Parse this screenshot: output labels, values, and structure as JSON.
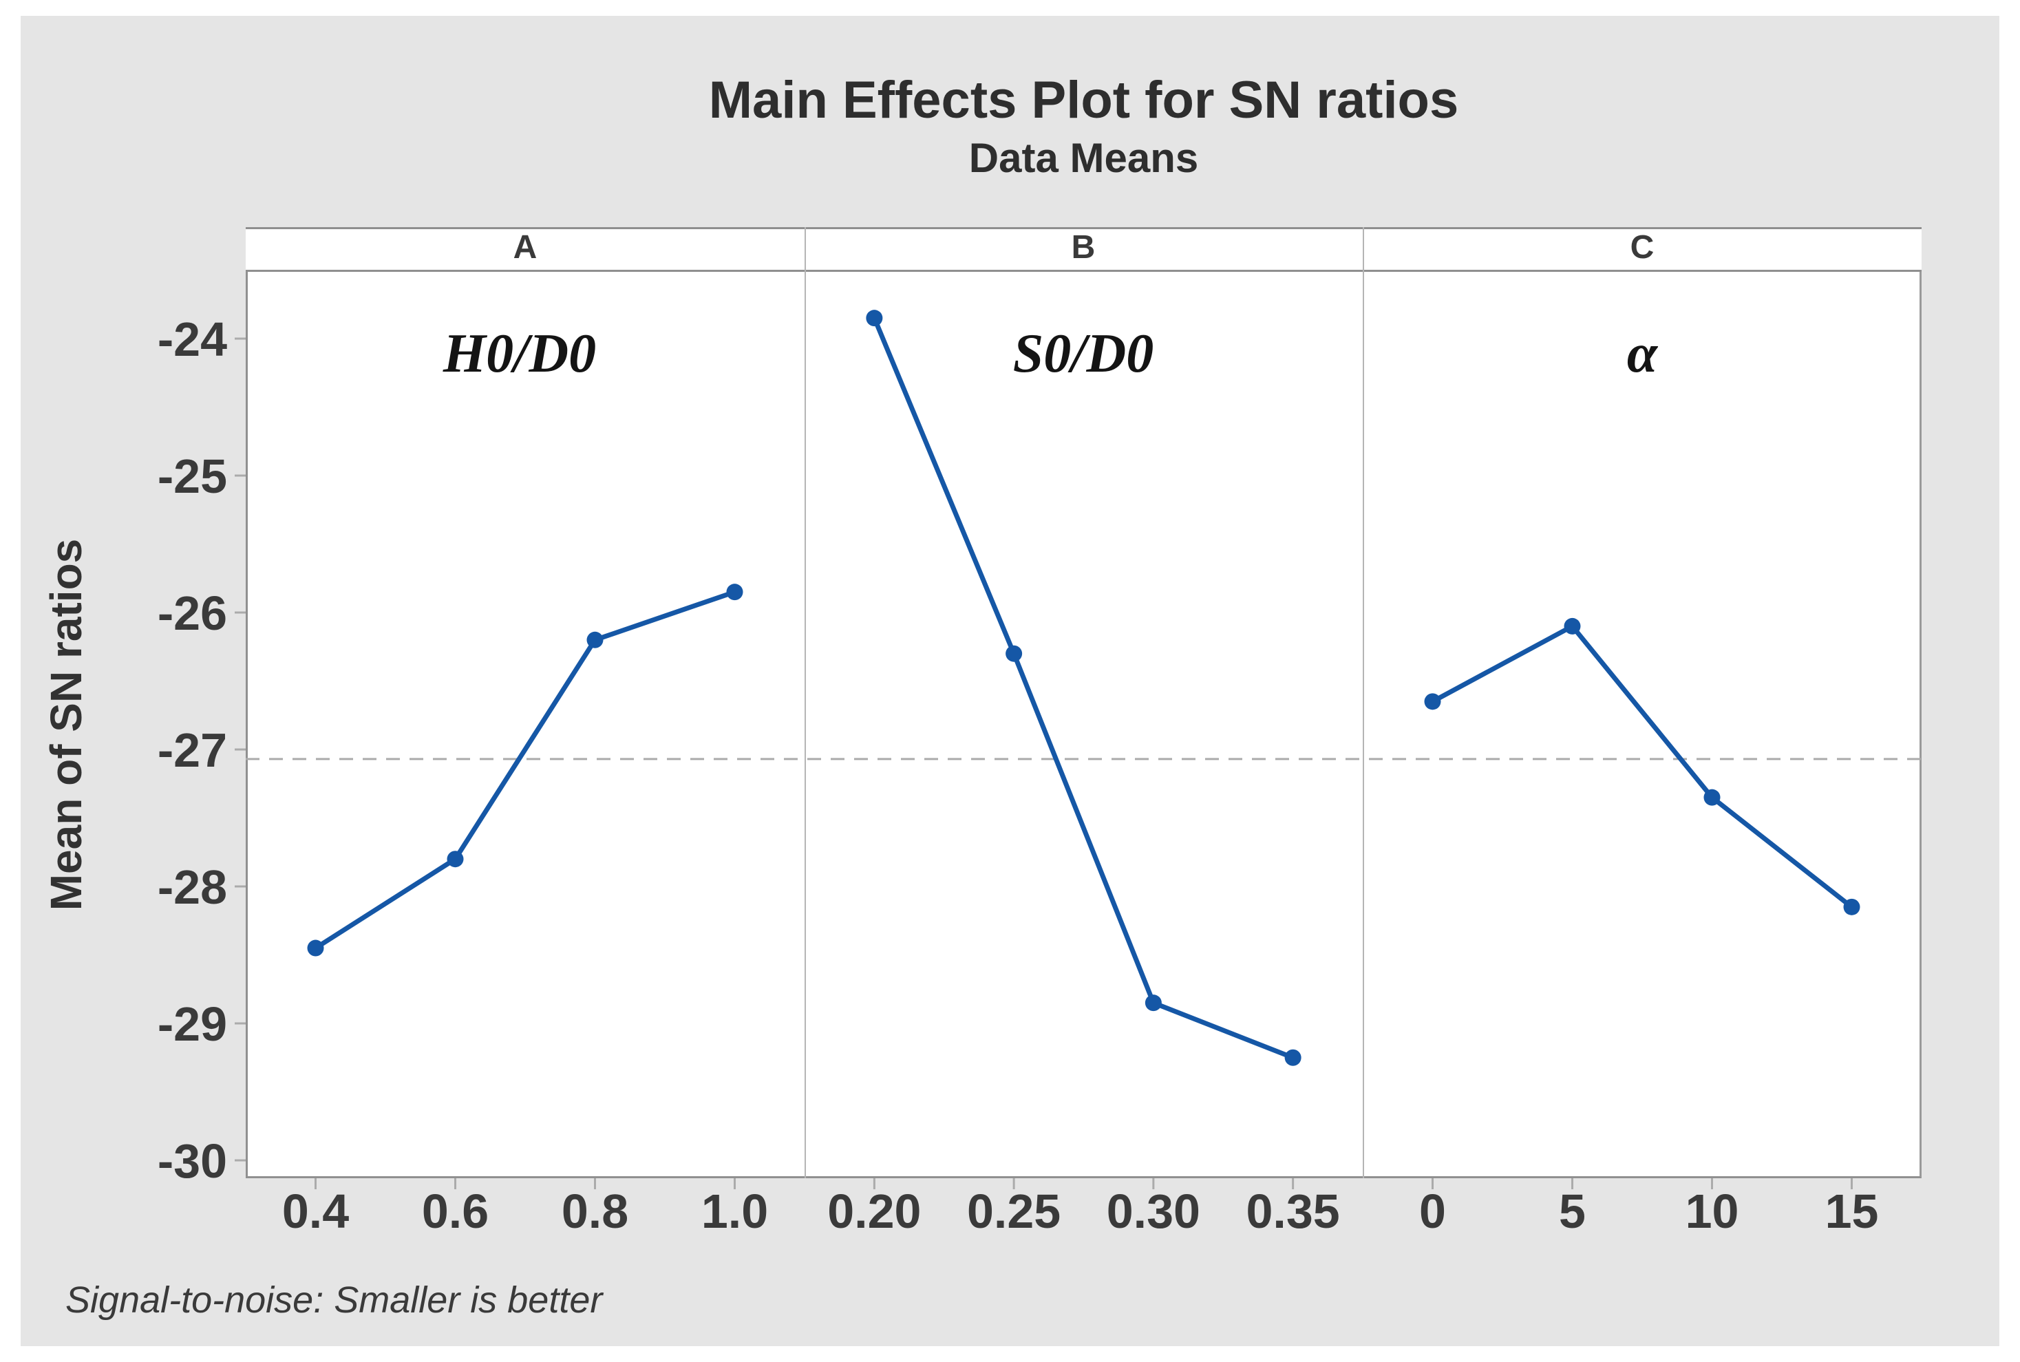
{
  "title": "Main Effects Plot for SN ratios",
  "subtitle": "Data Means",
  "y_axis_title": "Mean of SN ratios",
  "footer": "Signal-to-noise: Smaller is better",
  "colors": {
    "series_line": "#1557A6",
    "marker": "#1557A6",
    "mean_line": "#ABABAB",
    "axis": "#909090",
    "tick_mark": "#ABABAB",
    "tick_text": "#3A3A3A",
    "canvas_bg": "#E5E5E5",
    "plot_bg": "#FFFFFF"
  },
  "chart_data": {
    "type": "line",
    "title": "Main Effects Plot for SN ratios",
    "subtitle": "Data Means",
    "ylabel": "Mean of SN ratios",
    "ylim": [
      -30.13,
      -23.51
    ],
    "yticks": [
      -24,
      -25,
      -26,
      -27,
      -28,
      -29,
      -30
    ],
    "grid": "off",
    "legend": "none",
    "mean_line": -27.07,
    "footnote": "Signal-to-noise: Smaller is better",
    "panels": [
      {
        "header": "A",
        "factor_label": "H0/D0",
        "categories": [
          "0.4",
          "0.6",
          "0.8",
          "1.0"
        ],
        "values": [
          -28.45,
          -27.8,
          -26.2,
          -25.85
        ]
      },
      {
        "header": "B",
        "factor_label": "S0/D0",
        "categories": [
          "0.20",
          "0.25",
          "0.30",
          "0.35"
        ],
        "values": [
          -23.85,
          -26.3,
          -28.85,
          -29.25
        ]
      },
      {
        "header": "C",
        "factor_label": "α",
        "categories": [
          "0",
          "5",
          "10",
          "15"
        ],
        "values": [
          -26.65,
          -26.1,
          -27.35,
          -28.15
        ]
      }
    ]
  }
}
